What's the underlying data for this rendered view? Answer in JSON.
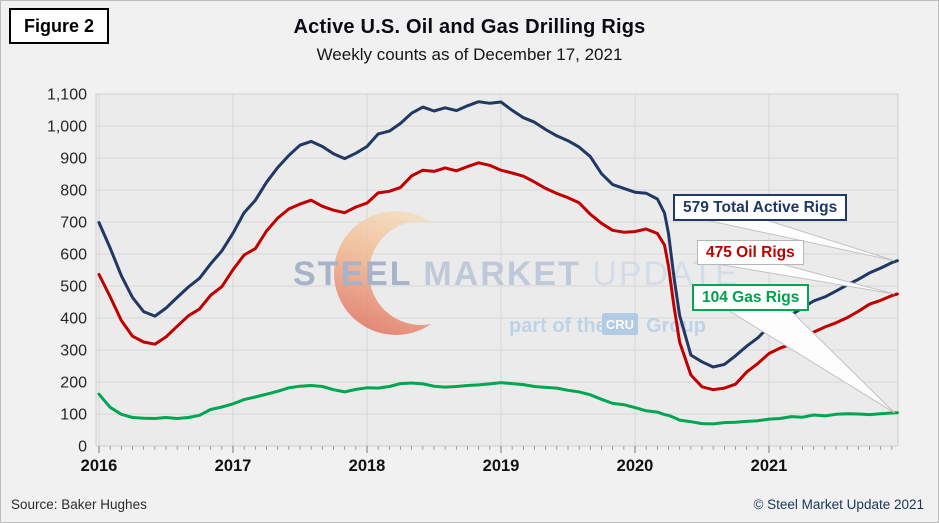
{
  "figure_label": "Figure 2",
  "title": "Active U.S. Oil and Gas Drilling Rigs",
  "subtitle": "Weekly counts as of December 17, 2021",
  "source": "Source: Baker Hughes",
  "copyright": "© Steel Market Update 2021",
  "watermark": {
    "word1": "STEEL",
    "word2": "MARKET",
    "word3": "UPDATE",
    "tagline_prefix": "part of the",
    "tagline_logo": "CRU",
    "tagline_suffix": "Group"
  },
  "colors": {
    "total": "#1f3864",
    "oil": "#c00000",
    "gas": "#00a650",
    "grid": "#d7d7d7",
    "axis": "#a9a9a9",
    "plot_bg": "#ebebeb",
    "canvas_bg": "#f1f1f1",
    "tick": "#8c8c8c",
    "y_label": "#262626",
    "x_label": "#111111"
  },
  "chart_data": {
    "type": "line",
    "title": "Active U.S. Oil and Gas Drilling Rigs",
    "subtitle": "Weekly counts as of December 17, 2021",
    "xlabel": "",
    "ylabel": "",
    "ylim": [
      0,
      1100
    ],
    "ytick_step": 100,
    "xticks": [
      2016,
      2017,
      2018,
      2019,
      2020,
      2021
    ],
    "grid": true,
    "legend": "end-callouts",
    "x_years": [
      2016.0,
      2016.083,
      2016.167,
      2016.25,
      2016.333,
      2016.417,
      2016.5,
      2016.583,
      2016.667,
      2016.75,
      2016.833,
      2016.917,
      2017.0,
      2017.083,
      2017.167,
      2017.25,
      2017.333,
      2017.417,
      2017.5,
      2017.583,
      2017.667,
      2017.75,
      2017.833,
      2017.917,
      2018.0,
      2018.083,
      2018.167,
      2018.25,
      2018.333,
      2018.417,
      2018.5,
      2018.583,
      2018.667,
      2018.75,
      2018.833,
      2018.917,
      2019.0,
      2019.083,
      2019.167,
      2019.25,
      2019.333,
      2019.417,
      2019.5,
      2019.583,
      2019.667,
      2019.75,
      2019.833,
      2019.917,
      2020.0,
      2020.083,
      2020.167,
      2020.22,
      2020.25,
      2020.29,
      2020.333,
      2020.417,
      2020.5,
      2020.583,
      2020.667,
      2020.75,
      2020.833,
      2020.917,
      2021.0,
      2021.083,
      2021.167,
      2021.25,
      2021.333,
      2021.417,
      2021.5,
      2021.583,
      2021.667,
      2021.75,
      2021.833,
      2021.917,
      2021.958
    ],
    "series": [
      {
        "name": "Total Active Rigs",
        "color": "#1f3864",
        "end_value": 579,
        "end_label": "579 Total Active Rigs",
        "values": [
          698,
          619,
          532,
          464,
          420,
          406,
          431,
          464,
          497,
          524,
          569,
          610,
          665,
          729,
          768,
          824,
          870,
          908,
          940,
          952,
          936,
          913,
          898,
          915,
          936,
          975,
          984,
          1008,
          1040,
          1059,
          1047,
          1057,
          1048,
          1063,
          1076,
          1071,
          1075,
          1049,
          1026,
          1012,
          989,
          969,
          954,
          934,
          904,
          851,
          817,
          805,
          793,
          790,
          772,
          728,
          664,
          529,
          408,
          284,
          263,
          247,
          255,
          282,
          312,
          338,
          373,
          392,
          410,
          432,
          453,
          466,
          484,
          503,
          521,
          541,
          556,
          573,
          579
        ]
      },
      {
        "name": "Oil Rigs",
        "color": "#c00000",
        "end_value": 475,
        "end_label": "475 Oil Rigs",
        "values": [
          536,
          467,
          392,
          343,
          325,
          318,
          341,
          374,
          407,
          428,
          471,
          498,
          551,
          597,
          617,
          672,
          712,
          741,
          756,
          768,
          749,
          737,
          729,
          747,
          759,
          791,
          796,
          808,
          844,
          862,
          858,
          869,
          860,
          873,
          885,
          877,
          862,
          853,
          843,
          825,
          805,
          789,
          776,
          760,
          724,
          696,
          674,
          668,
          670,
          678,
          664,
          628,
          562,
          438,
          325,
          222,
          185,
          176,
          181,
          193,
          231,
          258,
          289,
          306,
          318,
          342,
          356,
          372,
          385,
          401,
          421,
          443,
          455,
          470,
          475
        ]
      },
      {
        "name": "Gas Rigs",
        "color": "#00a650",
        "end_value": 104,
        "end_label": "104 Gas Rigs",
        "values": [
          162,
          121,
          99,
          89,
          87,
          86,
          89,
          86,
          89,
          96,
          114,
          122,
          132,
          145,
          153,
          162,
          171,
          182,
          187,
          189,
          186,
          176,
          169,
          177,
          182,
          181,
          186,
          195,
          197,
          194,
          187,
          184,
          186,
          189,
          191,
          194,
          198,
          195,
          192,
          186,
          183,
          181,
          174,
          169,
          160,
          146,
          133,
          129,
          120,
          110,
          106,
          98,
          96,
          89,
          81,
          76,
          70,
          69,
          73,
          74,
          77,
          79,
          84,
          86,
          92,
          90,
          97,
          94,
          99,
          101,
          100,
          98,
          101,
          103,
          104
        ]
      }
    ]
  }
}
